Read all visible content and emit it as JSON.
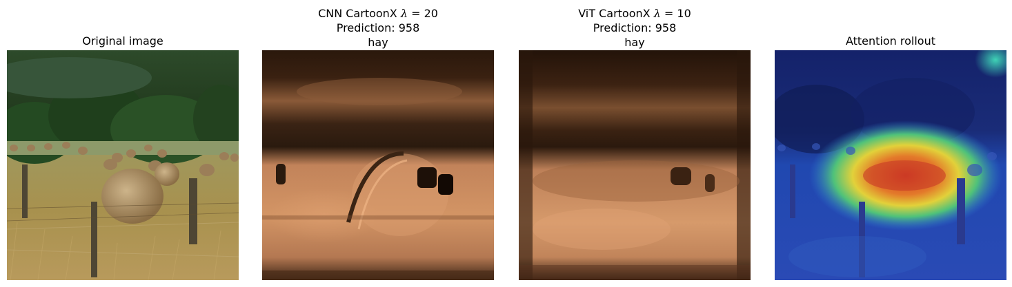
{
  "panels": [
    {
      "title_lines": [
        "Original image"
      ],
      "image": "photo-hay-bales-field"
    },
    {
      "title_lines": [
        "CNN CartoonX λ = 20",
        "Prediction: 958",
        "hay"
      ],
      "image": "cartoonx-mask-cnn",
      "prefix": "CNN CartoonX ",
      "lambda_symbol": "λ",
      "lambda_eq": " = 20"
    },
    {
      "title_lines": [
        "ViT CartoonX λ = 10",
        "Prediction: 958",
        "hay"
      ],
      "image": "cartoonx-mask-vit",
      "prefix": "ViT CartoonX ",
      "lambda_symbol": "λ",
      "lambda_eq": " = 10"
    },
    {
      "title_lines": [
        "Attention rollout"
      ],
      "image": "attention-rollout-heatmap-overlay"
    }
  ],
  "labels": {
    "p1_title": "Original image",
    "p2_prefix": "CNN CartoonX ",
    "p2_lambda": "λ",
    "p2_eq": " = 20",
    "p2_pred": "Prediction: 958",
    "p2_class": "hay",
    "p3_prefix": "ViT CartoonX ",
    "p3_lambda": "λ",
    "p3_eq": " = 10",
    "p3_pred": "Prediction: 958",
    "p3_class": "hay",
    "p4_title": "Attention rollout"
  },
  "colors": {
    "background": "#ffffff",
    "forest": "#2c4a24",
    "field": "#a89a62",
    "copper_light": "#d89a6a",
    "copper_dark": "#2a170c",
    "heat_blue": "#1d3f9a",
    "heat_red": "#d23a22"
  }
}
